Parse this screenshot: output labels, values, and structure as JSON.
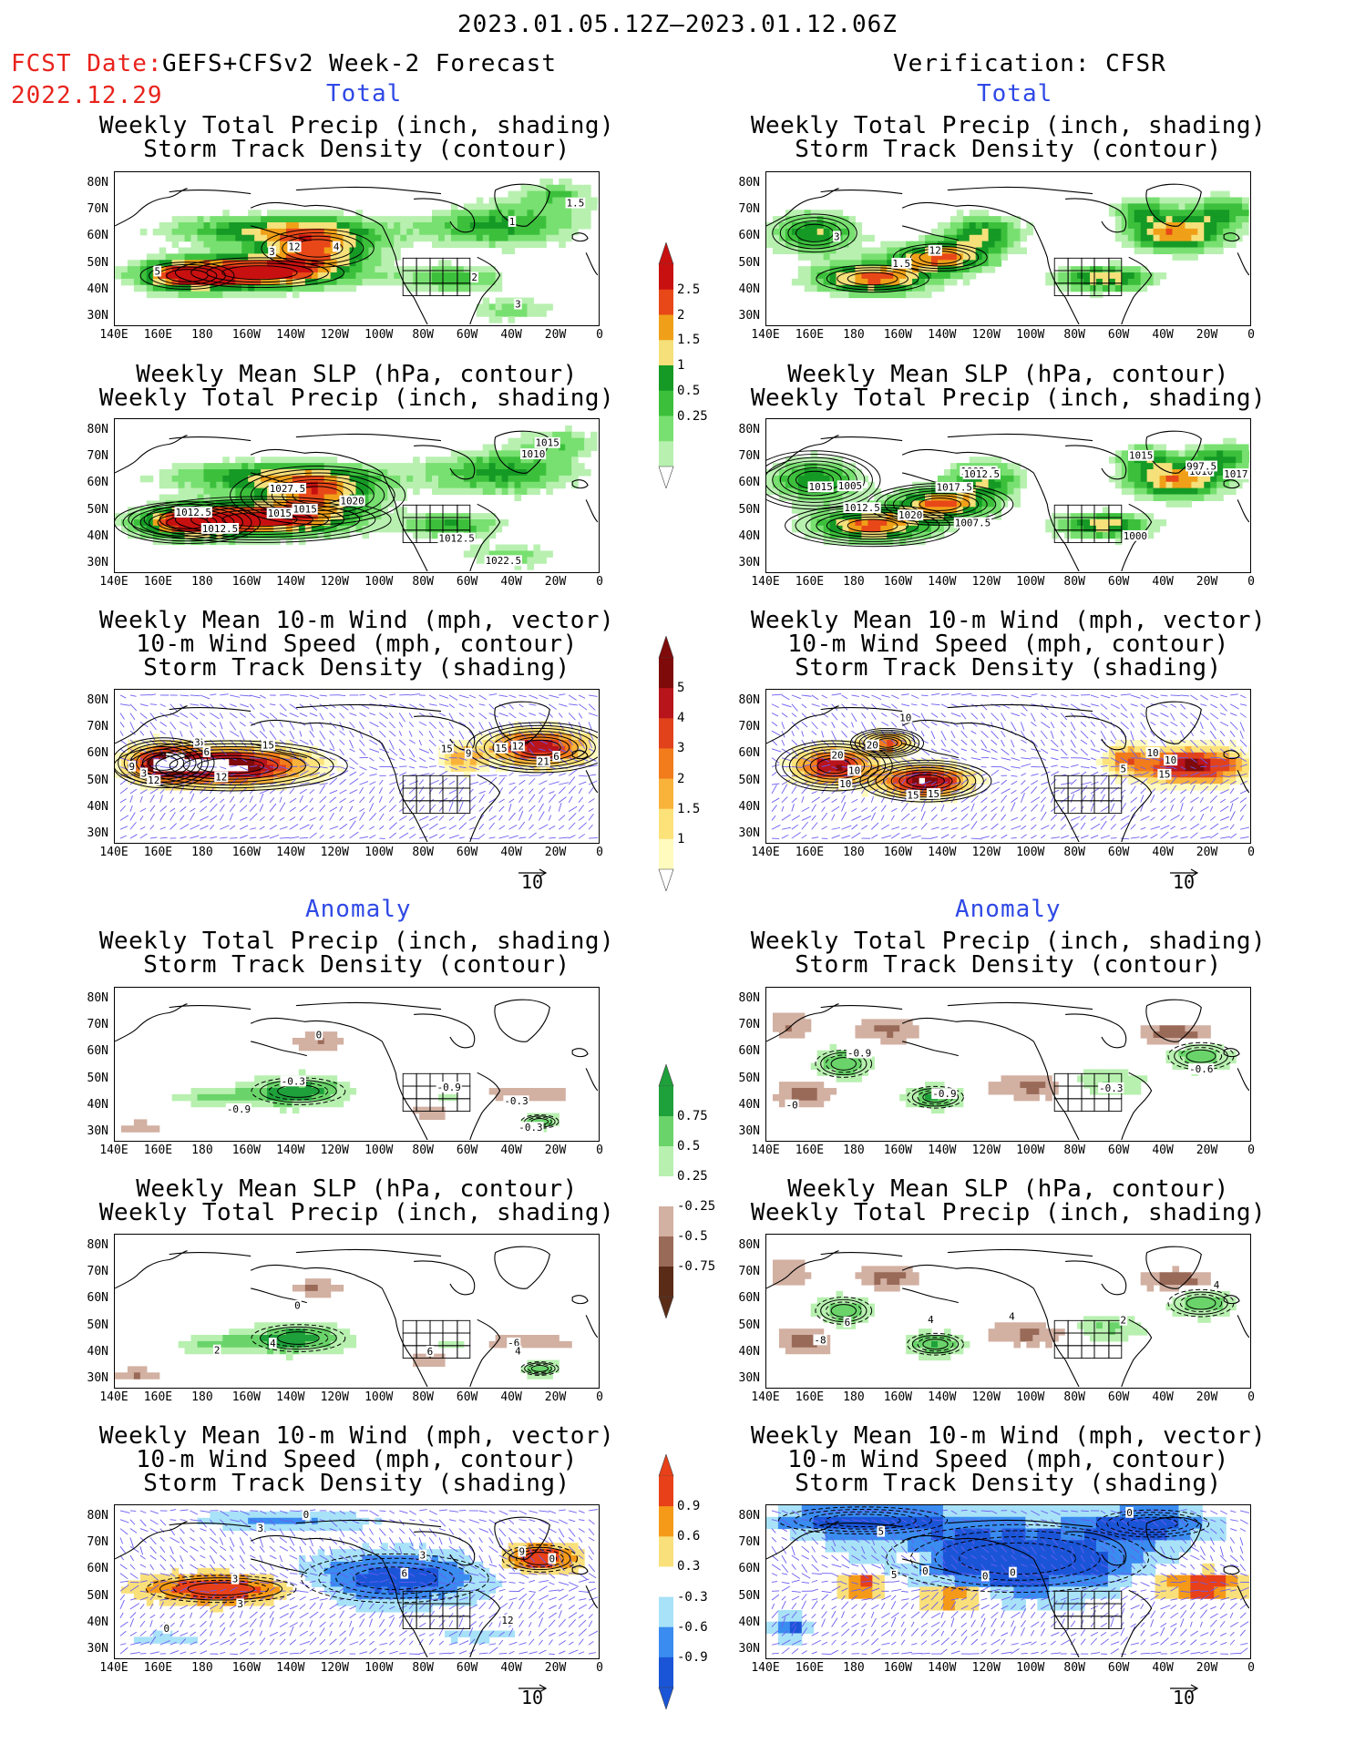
{
  "header": {
    "period": "2023.01.05.12Z–2023.01.12.06Z",
    "fcst_label": "FCST Date:",
    "fcst_model": "GEFS+CFSv2 Week-2 Forecast",
    "fcst_date": "2022.12.29",
    "verification": "Verification: CFSR"
  },
  "sections": {
    "total": "Total",
    "anomaly": "Anomaly"
  },
  "titles": {
    "precip_storm": "Weekly Total Precip (inch, shading)\nStorm Track Density (contour)",
    "slp_precip": "Weekly Mean SLP (hPa, contour)\nWeekly Total Precip (inch, shading)",
    "wind": "Weekly Mean 10-m Wind (mph, vector)\n10-m Wind Speed (mph, contour)\nStorm Track Density (shading)"
  },
  "axes": {
    "lat": [
      "80N",
      "70N",
      "60N",
      "50N",
      "40N",
      "30N"
    ],
    "lon": [
      "140E",
      "160E",
      "180",
      "160W",
      "140W",
      "120W",
      "100W",
      "80W",
      "60W",
      "40W",
      "20W",
      "0"
    ]
  },
  "vector_ref": "10",
  "colorbars": {
    "precip_total": [
      "2.5",
      "2",
      "1.5",
      "1",
      "0.5",
      "0.25"
    ],
    "storm_total": [
      "5",
      "4",
      "3",
      "2",
      "1.5",
      "1"
    ],
    "precip_anom": [
      "0.75",
      "0.5",
      "0.25",
      "-0.25",
      "-0.5",
      "-0.75"
    ],
    "storm_anom": [
      "0.9",
      "0.6",
      "0.3",
      "-0.3",
      "-0.6",
      "-0.9"
    ]
  },
  "colors": {
    "precip_levels": [
      "#b8f0b0",
      "#78e070",
      "#3cc03c",
      "#159a25",
      "#f5e07a",
      "#f0a018",
      "#e84818",
      "#c81010"
    ],
    "storm_levels": [
      "#fffbbf",
      "#fde27a",
      "#f9b23a",
      "#f27c1c",
      "#e1421c",
      "#b8141c",
      "#7e0a0a"
    ],
    "precip_anom_levels": [
      "#5a2c18",
      "#9a6a58",
      "#d2b0a2",
      "#ffffff",
      "#b8f0b0",
      "#6ad46a",
      "#1ea03a"
    ],
    "storm_anom_levels": [
      "#1a55d8",
      "#3a8cf0",
      "#a8e2f8",
      "#ffffff",
      "#fae07a",
      "#f59a18",
      "#e84018"
    ]
  },
  "contour_labels": {
    "p1": [
      "3",
      "5",
      "4",
      "12",
      "1",
      "2",
      "1.5",
      "3"
    ],
    "p2": [
      "1015",
      "1012.5",
      "1020",
      "1027.5",
      "1010",
      "1012.5",
      "1015",
      "1022.5",
      "1015",
      "1012.5"
    ],
    "p3": [
      "15",
      "12",
      "12",
      "9",
      "6",
      "3",
      "21",
      "15",
      "12",
      "9",
      "6",
      "15",
      "6",
      "3"
    ],
    "p4": [
      "-0.3",
      "-0.9",
      "-0.3",
      "-0.9",
      "-0.3",
      "0"
    ],
    "p5": [
      "4",
      "2",
      "-6",
      "6",
      "4",
      "0"
    ],
    "p6": [
      "3",
      "9",
      "6",
      "3",
      "0",
      "12",
      "3",
      "0",
      "3",
      "0"
    ],
    "v1": [
      "1.5",
      "12",
      "3"
    ],
    "v2": [
      "1020",
      "1007.5",
      "1005",
      "1002.5",
      "1010",
      "1000",
      "1017.5",
      "1015",
      "1012.5",
      "1017.5",
      "1015",
      "1012.5",
      "997.5"
    ],
    "v3": [
      "10",
      "15",
      "10",
      "15",
      "10",
      "20",
      "15",
      "20",
      "10",
      "5",
      "10"
    ],
    "v4": [
      "-0.9",
      "-0.9",
      "-0.3",
      "-0.6",
      "-0"
    ],
    "v5": [
      "6",
      "4",
      "2",
      "4",
      "-8",
      "4"
    ],
    "v6": [
      "0",
      "5",
      "0",
      "5",
      "0",
      "0"
    ]
  }
}
